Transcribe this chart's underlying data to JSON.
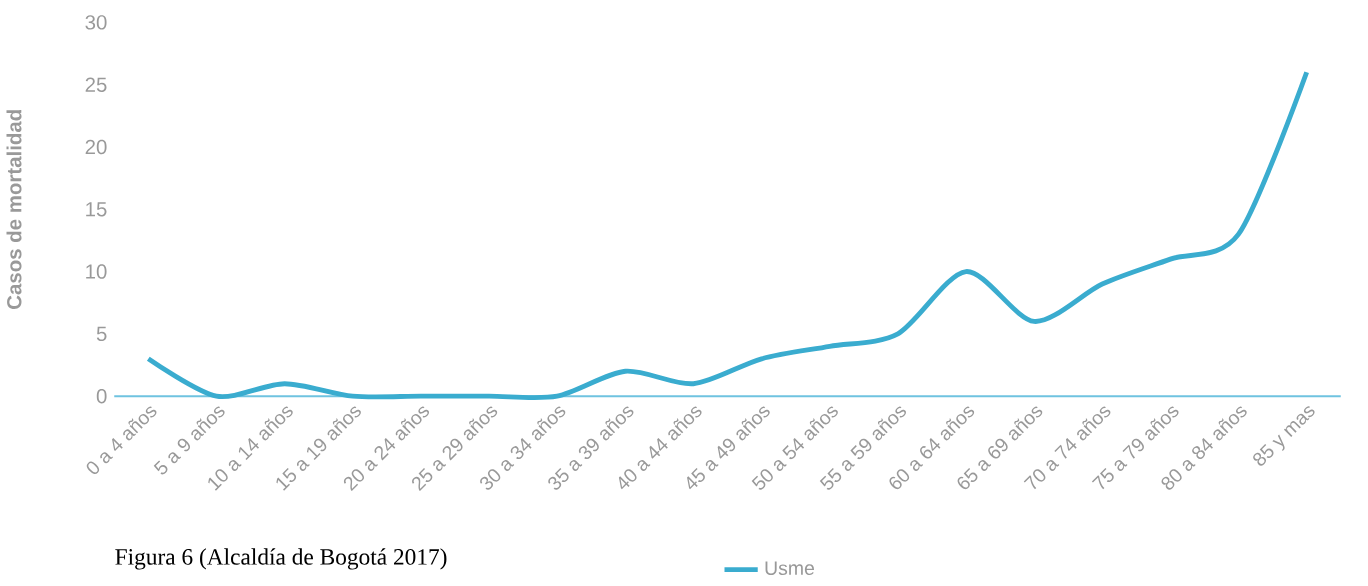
{
  "chart_data": {
    "type": "line",
    "ylabel": "Casos de mortalidad",
    "categories": [
      "0 a 4 años",
      "5 a 9 años",
      "10 a 14 años",
      "15 a 19 años",
      "20 a 24 años",
      "25 a 29 años",
      "30 a 34 años",
      "35 a 39 años",
      "40 a 44 años",
      "45 a 49 años",
      "50 a 54 años",
      "55 a 59 años",
      "60 a 64 años",
      "65 a 69 años",
      "70 a 74 años",
      "75 a 79 años",
      "80 a 84 años",
      "85 y mas"
    ],
    "series": [
      {
        "name": "Usme",
        "color": "#3aaccf",
        "values": [
          3,
          0,
          1,
          0,
          0,
          0,
          0,
          2,
          1,
          3,
          4,
          5,
          10,
          6,
          9,
          11,
          13,
          26
        ]
      }
    ],
    "ylim": [
      0,
      30
    ],
    "yticks": [
      0,
      5,
      10,
      15,
      20,
      25,
      30
    ],
    "legend": "bottom",
    "annotations": [
      "Figura 6 (Alcaldía de Bogotá 2017)"
    ]
  }
}
